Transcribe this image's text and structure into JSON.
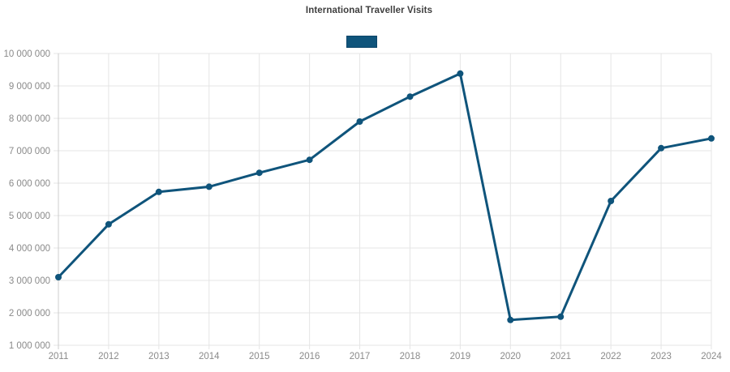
{
  "title": "International Traveller Visits",
  "legend": {
    "label": ""
  },
  "colors": {
    "line": "#0f547b",
    "legend_fill": "#0f547b",
    "legend_border": "#0c4569",
    "grid": "#e5e5e5",
    "axis": "#cccccc",
    "tick_label": "#8a8a8a",
    "title_text": "#3f3f3f",
    "background": "#ffffff"
  },
  "chart_data": {
    "type": "line",
    "title": "International Traveller Visits",
    "categories": [
      "2011",
      "2012",
      "2013",
      "2014",
      "2015",
      "2016",
      "2017",
      "2018",
      "2019",
      "2020",
      "2021",
      "2022",
      "2023",
      "2024"
    ],
    "values": [
      3100000,
      4730000,
      5730000,
      5890000,
      6320000,
      6720000,
      7900000,
      8670000,
      9380000,
      1780000,
      1880000,
      5450000,
      7080000,
      7380000
    ],
    "xlabel": "",
    "ylabel": "",
    "ylim": [
      1000000,
      10000000
    ],
    "ytick_interval": 1000000,
    "ytick_labels": [
      "1 000 000",
      "2 000 000",
      "3 000 000",
      "4 000 000",
      "5 000 000",
      "6 000 000",
      "7 000 000",
      "8 000 000",
      "9 000 000",
      "10 000 000"
    ],
    "grid": true,
    "legend_position": "top-center",
    "marker": "circle",
    "line_width": 3
  }
}
